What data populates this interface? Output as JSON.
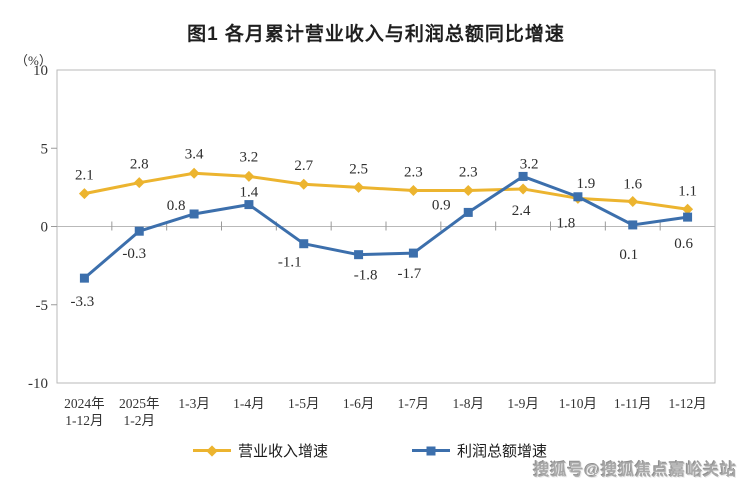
{
  "title": "图1  各月累计营业收入与利润总额同比增速",
  "y_unit": "（%）",
  "watermark": "搜狐号@搜狐焦点嘉峪关站",
  "chart_data": {
    "type": "line",
    "title": "图1  各月累计营业收入与利润总额同比增速",
    "ylabel": "（%）",
    "ylim": [
      -10,
      10
    ],
    "yticks": [
      10,
      5,
      0,
      -5,
      -10
    ],
    "grid": "zero-line-only",
    "legend_position": "bottom",
    "categories": [
      "2024年\n1-12月",
      "2025年\n1-2月",
      "1-3月",
      "1-4月",
      "1-5月",
      "1-6月",
      "1-7月",
      "1-8月",
      "1-9月",
      "1-10月",
      "1-11月",
      "1-12月"
    ],
    "series": [
      {
        "id": "revenue",
        "name": "营业收入增速",
        "color": "#ECB42F",
        "marker": "diamond",
        "values": [
          2.1,
          2.8,
          3.4,
          3.2,
          2.7,
          2.5,
          2.3,
          2.3,
          2.4,
          1.8,
          1.6,
          1.1
        ],
        "label_offsets": [
          [
            0,
            -14
          ],
          [
            0,
            -14
          ],
          [
            0,
            -15
          ],
          [
            0,
            -15
          ],
          [
            0,
            -14
          ],
          [
            0,
            -14
          ],
          [
            0,
            -14
          ],
          [
            0,
            -14
          ],
          [
            -2,
            26
          ],
          [
            -12,
            29
          ],
          [
            0,
            -13
          ],
          [
            0,
            -14
          ]
        ]
      },
      {
        "id": "profit",
        "name": "利润总额增速",
        "color": "#3C6FAC",
        "marker": "square",
        "values": [
          -3.3,
          -0.3,
          0.8,
          1.4,
          -1.1,
          -1.8,
          -1.7,
          0.9,
          3.2,
          1.9,
          0.1,
          0.6
        ],
        "label_offsets": [
          [
            -2,
            28
          ],
          [
            -5,
            27
          ],
          [
            -18,
            -4
          ],
          [
            0,
            -8
          ],
          [
            -14,
            23
          ],
          [
            7,
            25
          ],
          [
            -4,
            25
          ],
          [
            -27,
            -3
          ],
          [
            6,
            -8
          ],
          [
            8,
            -9
          ],
          [
            -4,
            34
          ],
          [
            -4,
            31
          ]
        ]
      }
    ]
  },
  "axis_colors": {
    "border": "#b9b9b9",
    "tick": "#9a9a9a",
    "text": "#333333",
    "data_label": "#2e2e2e"
  }
}
